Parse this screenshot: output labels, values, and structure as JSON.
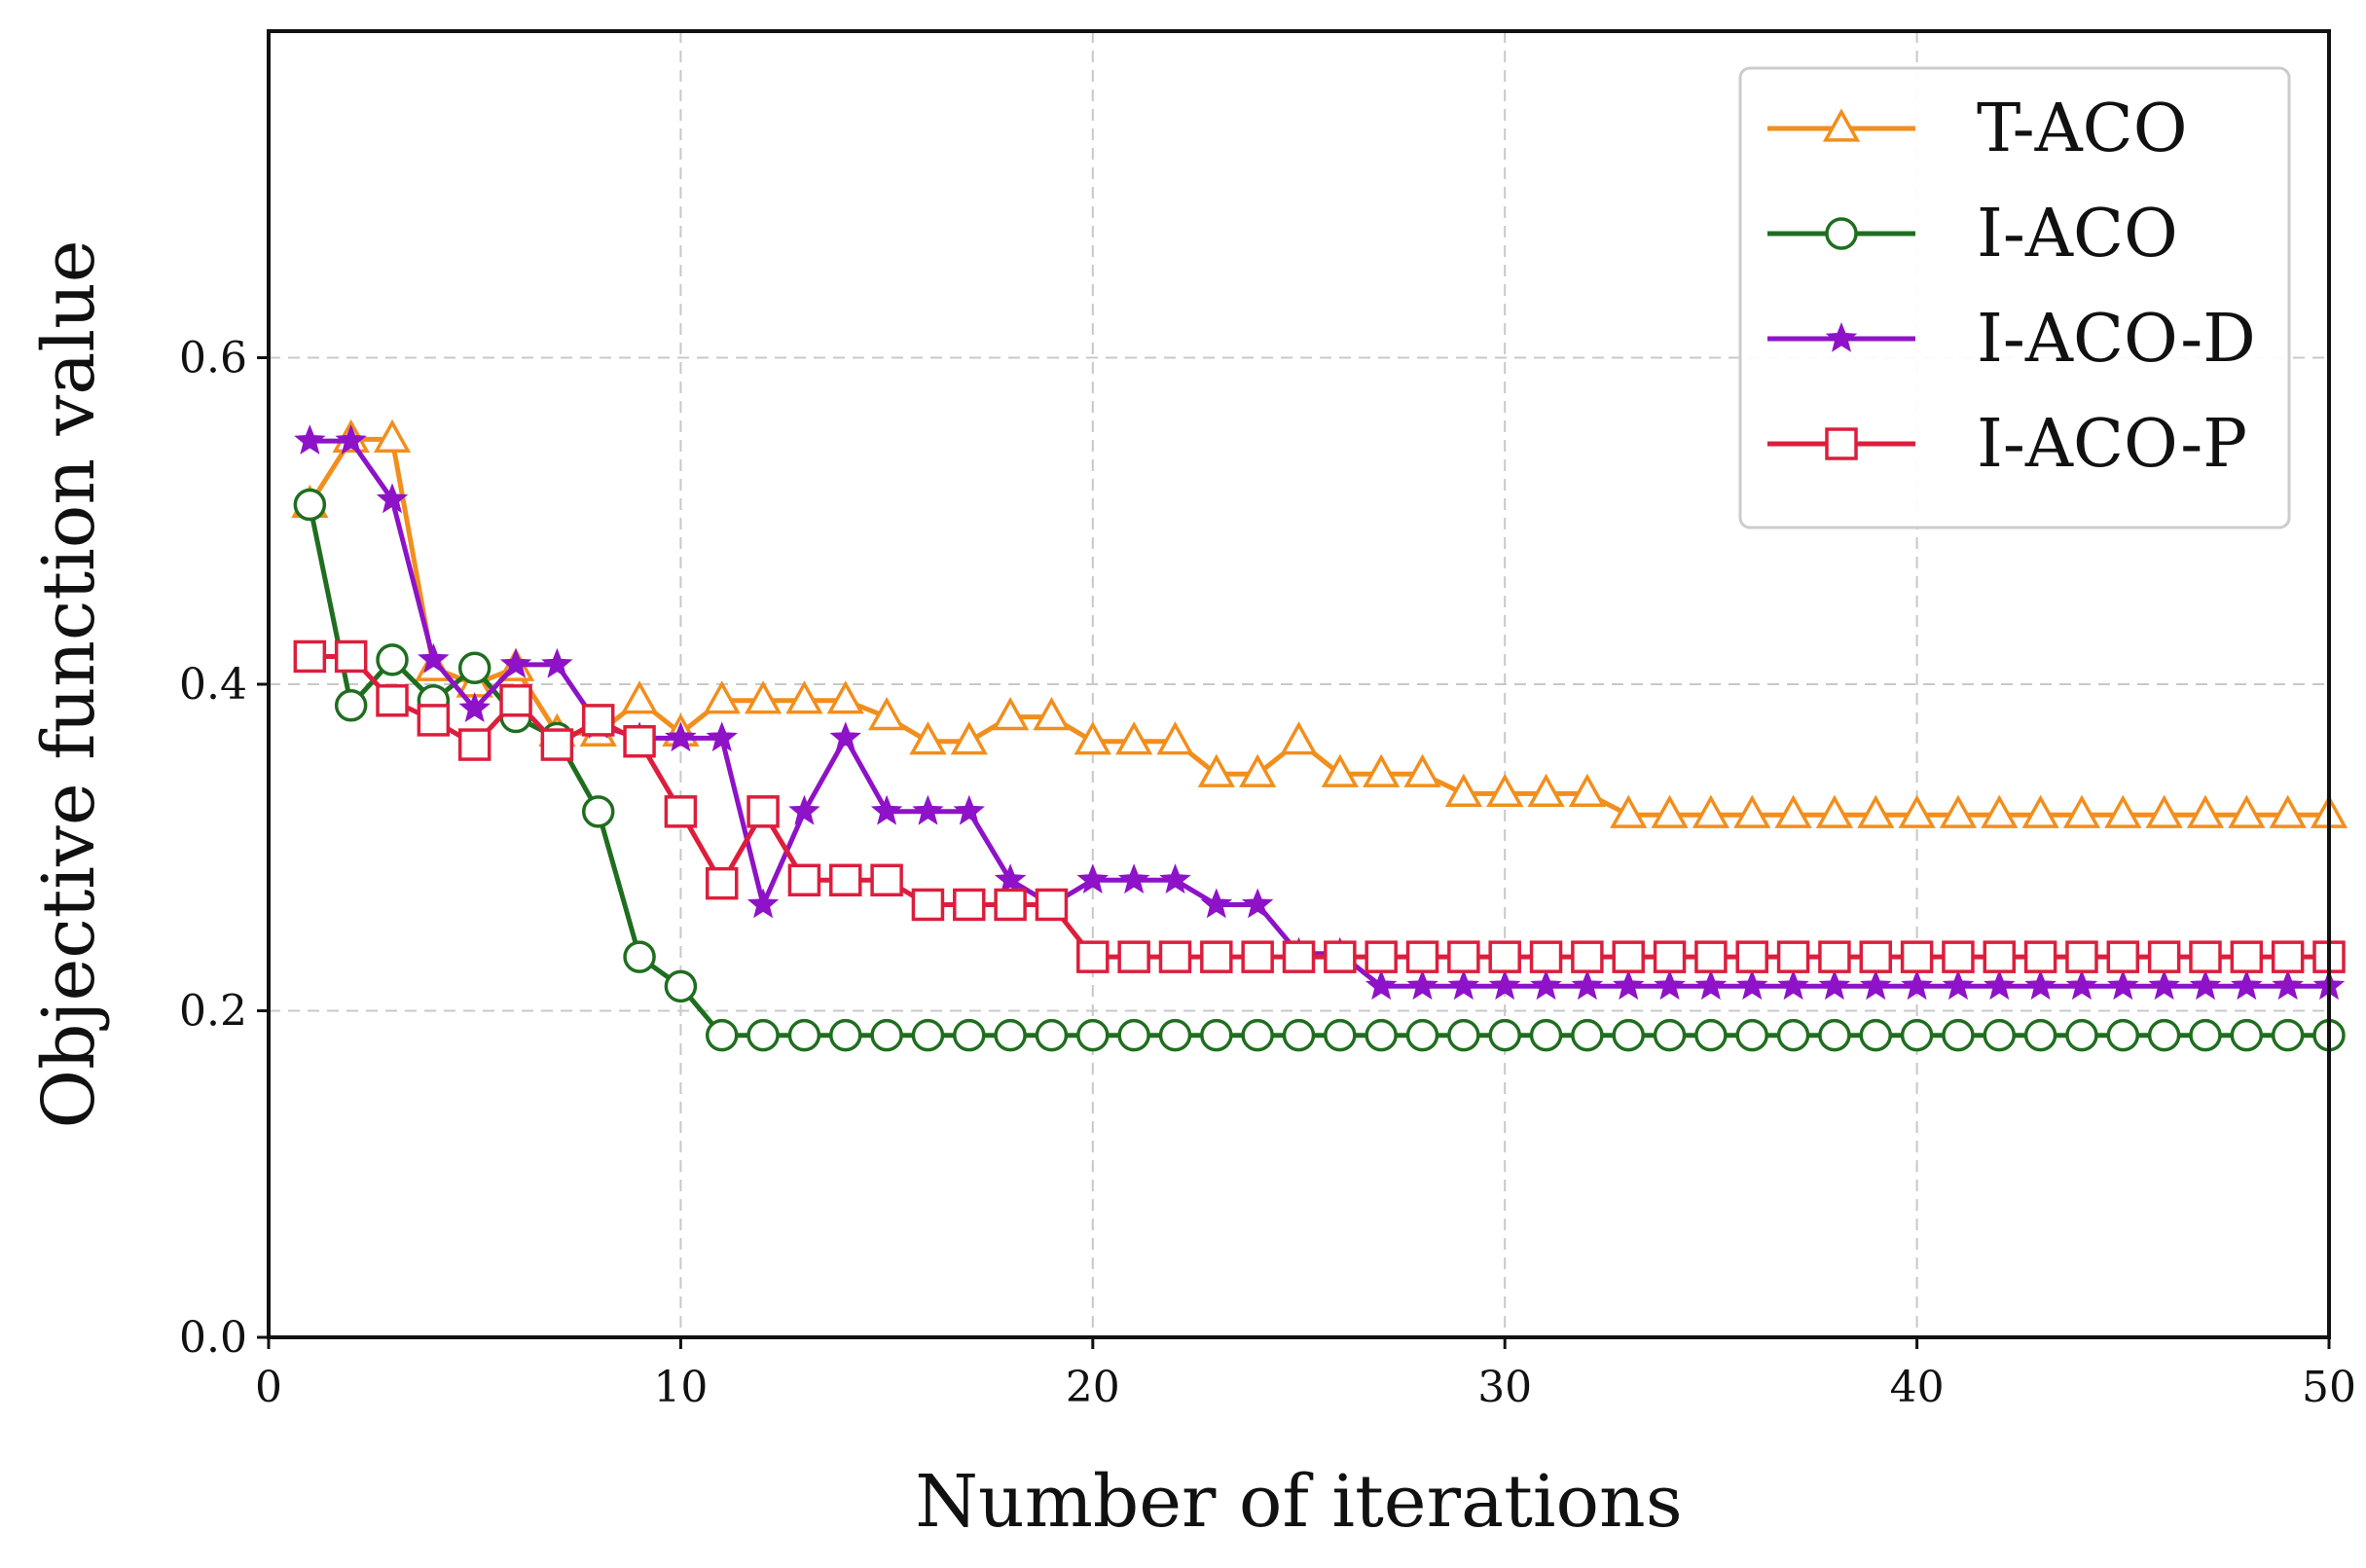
{
  "chart_data": {
    "type": "line",
    "title": "",
    "xlabel": "Number of iterations",
    "ylabel": "Objective function value",
    "xlim": [
      0,
      50
    ],
    "ylim": [
      0,
      0.8
    ],
    "xticks": [
      0,
      10,
      20,
      30,
      40,
      50
    ],
    "xtick_labels": [
      "0",
      "10",
      "20",
      "30",
      "40",
      "50"
    ],
    "yticks": [
      0.0,
      0.2,
      0.4,
      0.6
    ],
    "ytick_labels": [
      "0.0",
      "0.2",
      "0.4",
      "0.6"
    ],
    "grid": true,
    "legend_position": "top-right",
    "x": [
      1,
      2,
      3,
      4,
      5,
      6,
      7,
      8,
      9,
      10,
      11,
      12,
      13,
      14,
      15,
      16,
      17,
      18,
      19,
      20,
      21,
      22,
      23,
      24,
      25,
      26,
      27,
      28,
      29,
      30,
      31,
      32,
      33,
      34,
      35,
      36,
      37,
      38,
      39,
      40,
      41,
      42,
      43,
      44,
      45,
      46,
      47,
      48,
      49,
      50
    ],
    "series": [
      {
        "name": "T-ACO",
        "color": "#f28e1c",
        "marker": "triangle",
        "values": [
          0.51,
          0.55,
          0.55,
          0.41,
          0.4,
          0.41,
          0.37,
          0.37,
          0.39,
          0.37,
          0.39,
          0.39,
          0.39,
          0.39,
          0.38,
          0.365,
          0.365,
          0.38,
          0.38,
          0.365,
          0.365,
          0.365,
          0.345,
          0.345,
          0.365,
          0.345,
          0.345,
          0.345,
          0.333,
          0.333,
          0.333,
          0.333,
          0.32,
          0.32,
          0.32,
          0.32,
          0.32,
          0.32,
          0.32,
          0.32,
          0.32,
          0.32,
          0.32,
          0.32,
          0.32,
          0.32,
          0.32,
          0.32,
          0.32,
          0.32
        ]
      },
      {
        "name": "I-ACO",
        "color": "#1f6e1f",
        "marker": "circle",
        "values": [
          0.51,
          0.387,
          0.415,
          0.39,
          0.41,
          0.38,
          0.367,
          0.322,
          0.233,
          0.215,
          0.185,
          0.185,
          0.185,
          0.185,
          0.185,
          0.185,
          0.185,
          0.185,
          0.185,
          0.185,
          0.185,
          0.185,
          0.185,
          0.185,
          0.185,
          0.185,
          0.185,
          0.185,
          0.185,
          0.185,
          0.185,
          0.185,
          0.185,
          0.185,
          0.185,
          0.185,
          0.185,
          0.185,
          0.185,
          0.185,
          0.185,
          0.185,
          0.185,
          0.185,
          0.185,
          0.185,
          0.185,
          0.185,
          0.185,
          0.185
        ]
      },
      {
        "name": "I-ACO-D",
        "color": "#8e12c8",
        "marker": "star",
        "values": [
          0.549,
          0.549,
          0.513,
          0.415,
          0.385,
          0.412,
          0.412,
          0.375,
          0.367,
          0.367,
          0.367,
          0.265,
          0.322,
          0.367,
          0.322,
          0.322,
          0.322,
          0.28,
          0.265,
          0.28,
          0.28,
          0.28,
          0.265,
          0.265,
          0.235,
          0.235,
          0.215,
          0.215,
          0.215,
          0.215,
          0.215,
          0.215,
          0.215,
          0.215,
          0.215,
          0.215,
          0.215,
          0.215,
          0.215,
          0.215,
          0.215,
          0.215,
          0.215,
          0.215,
          0.215,
          0.215,
          0.215,
          0.215,
          0.215,
          0.215
        ]
      },
      {
        "name": "I-ACO-P",
        "color": "#dc1e3c",
        "marker": "square",
        "values": [
          0.417,
          0.417,
          0.39,
          0.378,
          0.363,
          0.39,
          0.363,
          0.378,
          0.365,
          0.322,
          0.278,
          0.322,
          0.28,
          0.28,
          0.28,
          0.265,
          0.265,
          0.265,
          0.265,
          0.233,
          0.233,
          0.233,
          0.233,
          0.233,
          0.233,
          0.233,
          0.233,
          0.233,
          0.233,
          0.233,
          0.233,
          0.233,
          0.233,
          0.233,
          0.233,
          0.233,
          0.233,
          0.233,
          0.233,
          0.233,
          0.233,
          0.233,
          0.233,
          0.233,
          0.233,
          0.233,
          0.233,
          0.233,
          0.233,
          0.233
        ]
      }
    ]
  }
}
